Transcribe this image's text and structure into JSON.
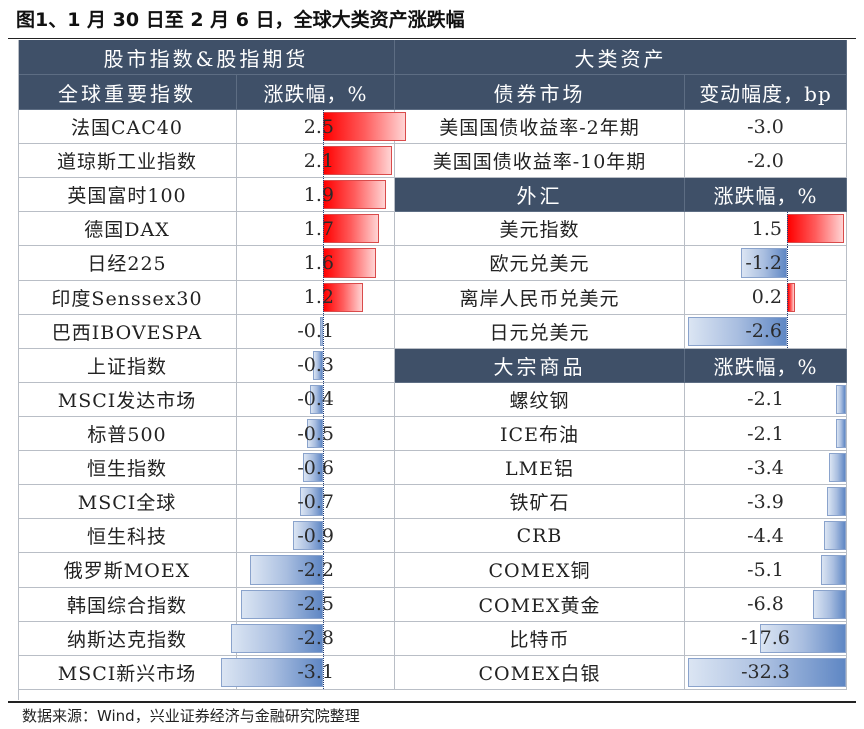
{
  "title": "图1、1 月 30 日至 2 月 6 日，全球大类资产涨跌幅",
  "footnote": "数据来源：Wind，兴业证券经济与金融研究院整理",
  "colors": {
    "header_bg": "#3f5068",
    "positive_bar": "#ff0000",
    "negative_bar": "#5f87c4",
    "grid_line": "#b9bec6"
  },
  "left_section": {
    "group_header": "股市指数&股指期货",
    "col_name_header": "全球重要指数",
    "col_value_header": "涨跌幅，%",
    "rows": [
      {
        "name": "法国CAC40",
        "value": "2.5"
      },
      {
        "name": "道琼斯工业指数",
        "value": "2.1"
      },
      {
        "name": "英国富时100",
        "value": "1.9"
      },
      {
        "name": "德国DAX",
        "value": "1.7"
      },
      {
        "name": "日经225",
        "value": "1.6"
      },
      {
        "name": "印度Senssex30",
        "value": "1.2"
      },
      {
        "name": "巴西IBOVESPA",
        "value": "-0.1"
      },
      {
        "name": "上证指数",
        "value": "-0.3"
      },
      {
        "name": "MSCI发达市场",
        "value": "-0.4"
      },
      {
        "name": "标普500",
        "value": "-0.5"
      },
      {
        "name": "恒生指数",
        "value": "-0.6"
      },
      {
        "name": "MSCI全球",
        "value": "-0.7"
      },
      {
        "name": "恒生科技",
        "value": "-0.9"
      },
      {
        "name": "俄罗斯MOEX",
        "value": "-2.2"
      },
      {
        "name": "韩国综合指数",
        "value": "-2.5"
      },
      {
        "name": "纳斯达克指数",
        "value": "-2.8"
      },
      {
        "name": "MSCI新兴市场",
        "value": "-3.1"
      }
    ]
  },
  "right_section": {
    "group_header": "大类资产",
    "bonds": {
      "col_name_header": "债券市场",
      "col_value_header": "变动幅度，bp",
      "rows": [
        {
          "name": "美国国债收益率-2年期",
          "value": "-3.0"
        },
        {
          "name": "美国国债收益率-10年期",
          "value": "-2.0"
        }
      ]
    },
    "fx": {
      "col_name_header": "外汇",
      "col_value_header": "涨跌幅，%",
      "rows": [
        {
          "name": "美元指数",
          "value": "1.5"
        },
        {
          "name": "欧元兑美元",
          "value": "-1.2"
        },
        {
          "name": "离岸人民币兑美元",
          "value": "0.2"
        },
        {
          "name": "日元兑美元",
          "value": "-2.6"
        }
      ]
    },
    "commodities": {
      "col_name_header": "大宗商品",
      "col_value_header": "涨跌幅，%",
      "rows": [
        {
          "name": "螺纹钢",
          "value": "-2.1"
        },
        {
          "name": "ICE布油",
          "value": "-2.1"
        },
        {
          "name": "LME铝",
          "value": "-3.4"
        },
        {
          "name": "铁矿石",
          "value": "-3.9"
        },
        {
          "name": "CRB",
          "value": "-4.4"
        },
        {
          "name": "COMEX铜",
          "value": "-5.1"
        },
        {
          "name": "COMEX黄金",
          "value": "-6.8"
        },
        {
          "name": "比特币",
          "value": "-17.6"
        },
        {
          "name": "COMEX白银",
          "value": "-32.3"
        }
      ]
    }
  },
  "chart_data": [
    {
      "type": "bar",
      "title": "全球重要指数 涨跌幅，%",
      "orientation": "horizontal",
      "categories": [
        "法国CAC40",
        "道琼斯工业指数",
        "英国富时100",
        "德国DAX",
        "日经225",
        "印度Senssex30",
        "巴西IBOVESPA",
        "上证指数",
        "MSCI发达市场",
        "标普500",
        "恒生指数",
        "MSCI全球",
        "恒生科技",
        "俄罗斯MOEX",
        "韩国综合指数",
        "纳斯达克指数",
        "MSCI新兴市场"
      ],
      "values": [
        2.5,
        2.1,
        1.9,
        1.7,
        1.6,
        1.2,
        -0.1,
        -0.3,
        -0.4,
        -0.5,
        -0.6,
        -0.7,
        -0.9,
        -2.2,
        -2.5,
        -2.8,
        -3.1
      ],
      "xlabel": "",
      "ylabel": "涨跌幅，%"
    },
    {
      "type": "table",
      "title": "债券市场 变动幅度，bp",
      "categories": [
        "美国国债收益率-2年期",
        "美国国债收益率-10年期"
      ],
      "values": [
        -3.0,
        -2.0
      ]
    },
    {
      "type": "bar",
      "title": "外汇 涨跌幅，%",
      "orientation": "horizontal",
      "categories": [
        "美元指数",
        "欧元兑美元",
        "离岸人民币兑美元",
        "日元兑美元"
      ],
      "values": [
        1.5,
        -1.2,
        0.2,
        -2.6
      ]
    },
    {
      "type": "bar",
      "title": "大宗商品 涨跌幅，%",
      "orientation": "horizontal",
      "categories": [
        "螺纹钢",
        "ICE布油",
        "LME铝",
        "铁矿石",
        "CRB",
        "COMEX铜",
        "COMEX黄金",
        "比特币",
        "COMEX白银"
      ],
      "values": [
        -2.1,
        -2.1,
        -3.4,
        -3.9,
        -4.4,
        -5.1,
        -6.8,
        -17.6,
        -32.3
      ]
    }
  ]
}
